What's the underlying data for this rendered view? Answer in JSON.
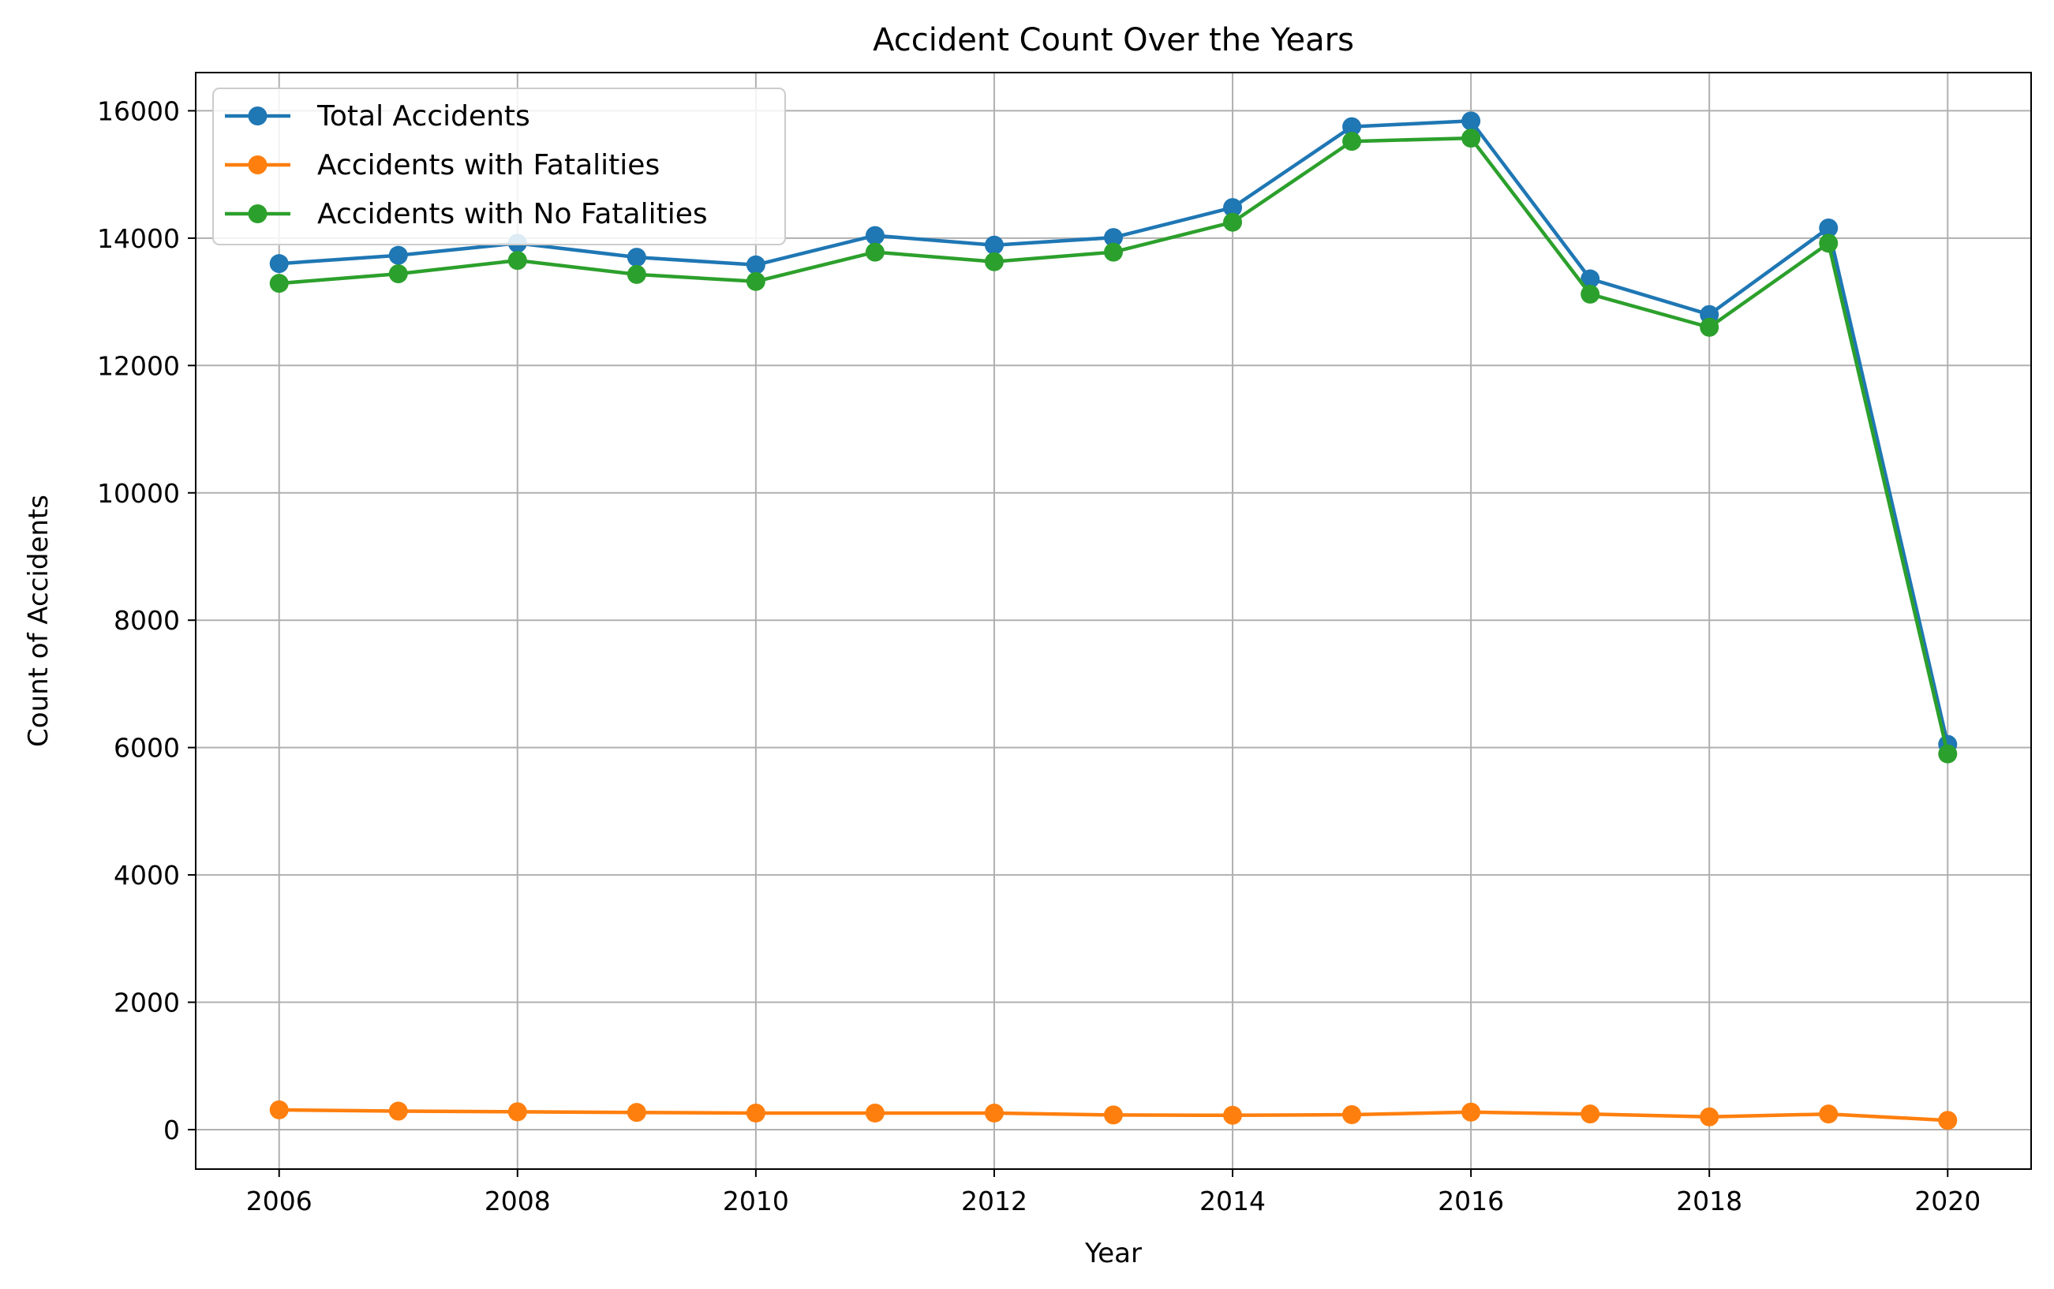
{
  "chart_data": {
    "type": "line",
    "title": "Accident Count Over the Years",
    "xlabel": "Year",
    "ylabel": "Count of Accidents",
    "x": [
      2006,
      2007,
      2008,
      2009,
      2010,
      2011,
      2012,
      2013,
      2014,
      2015,
      2016,
      2017,
      2018,
      2019,
      2020
    ],
    "xlim": [
      2005.3,
      2020.7
    ],
    "ylim": [
      -620,
      16600
    ],
    "xticks": [
      2006,
      2008,
      2010,
      2012,
      2014,
      2016,
      2018,
      2020
    ],
    "yticks": [
      0,
      2000,
      4000,
      6000,
      8000,
      10000,
      12000,
      14000,
      16000
    ],
    "grid": true,
    "legend_position": "top-left",
    "series": [
      {
        "name": "Total Accidents",
        "color": "#1f77b4",
        "marker": "circle",
        "values": [
          13600,
          13730,
          13920,
          13700,
          13580,
          14040,
          13890,
          14010,
          14480,
          15750,
          15840,
          13360,
          12800,
          14160,
          6050
        ]
      },
      {
        "name": "Accidents with Fatalities",
        "color": "#ff7f0e",
        "marker": "circle",
        "values": [
          310,
          290,
          280,
          270,
          260,
          260,
          260,
          230,
          225,
          235,
          275,
          245,
          200,
          245,
          145
        ]
      },
      {
        "name": "Accidents with No Fatalities",
        "color": "#2ca02c",
        "marker": "circle",
        "values": [
          13290,
          13440,
          13650,
          13430,
          13320,
          13780,
          13630,
          13780,
          14250,
          15520,
          15570,
          13120,
          12600,
          13920,
          5900
        ]
      }
    ]
  }
}
